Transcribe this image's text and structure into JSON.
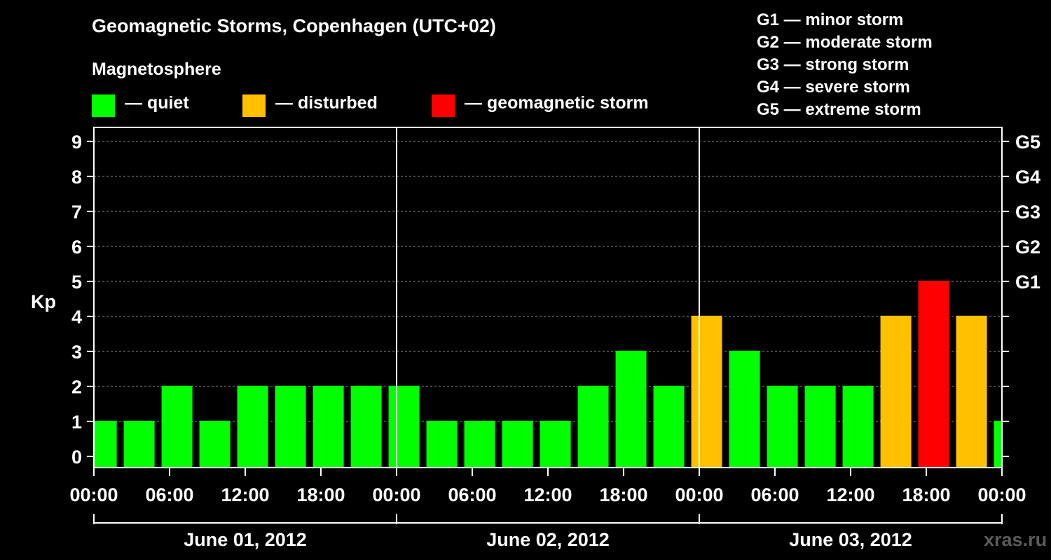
{
  "header": {
    "title": "Geomagnetic Storms, Copenhagen (UTC+02)",
    "subtitle": "Magnetosphere"
  },
  "legend": [
    {
      "label": "— quiet",
      "color": "#00ff00"
    },
    {
      "label": "— disturbed",
      "color": "#ffc000"
    },
    {
      "label": "— geomagnetic storm",
      "color": "#ff0000"
    }
  ],
  "storm_scale": [
    "G1 — minor storm",
    "G2 — moderate storm",
    "G3 — strong storm",
    "G4 — severe storm",
    "G5 — extreme storm"
  ],
  "watermark": "xras.ru",
  "chart_data": {
    "type": "bar",
    "ylabel": "Kp",
    "ylim": [
      0,
      9
    ],
    "yticks": [
      "0",
      "1",
      "2",
      "3",
      "4",
      "5",
      "6",
      "7",
      "8",
      "9"
    ],
    "right_axis_ticks": [
      {
        "kp": 5,
        "label": "G1"
      },
      {
        "kp": 6,
        "label": "G2"
      },
      {
        "kp": 7,
        "label": "G3"
      },
      {
        "kp": 8,
        "label": "G4"
      },
      {
        "kp": 9,
        "label": "G5"
      }
    ],
    "x_tick_labels": [
      "00:00",
      "06:00",
      "12:00",
      "18:00",
      "00:00",
      "06:00",
      "12:00",
      "18:00",
      "00:00",
      "06:00",
      "12:00",
      "18:00",
      "00:00"
    ],
    "x_range_hours": [
      0,
      72
    ],
    "day_labels": [
      "June 01, 2012",
      "June 02, 2012",
      "June 03, 2012"
    ],
    "gridlines": "dashed horizontal at each Kp level",
    "bar_interval_hours": 3,
    "first_bar_start_hour": -0.75,
    "values": [
      1,
      1,
      2,
      1,
      2,
      2,
      2,
      2,
      2,
      1,
      1,
      1,
      1,
      2,
      3,
      2,
      4,
      3,
      2,
      2,
      2,
      4,
      5,
      4,
      1
    ],
    "levels": [
      "quiet",
      "quiet",
      "quiet",
      "quiet",
      "quiet",
      "quiet",
      "quiet",
      "quiet",
      "quiet",
      "quiet",
      "quiet",
      "quiet",
      "quiet",
      "quiet",
      "quiet",
      "quiet",
      "disturbed",
      "quiet",
      "quiet",
      "quiet",
      "quiet",
      "disturbed",
      "geomagnetic storm",
      "disturbed",
      "quiet"
    ],
    "level_colors": {
      "quiet": "#00ff00",
      "disturbed": "#ffc000",
      "geomagnetic storm": "#ff0000"
    }
  }
}
